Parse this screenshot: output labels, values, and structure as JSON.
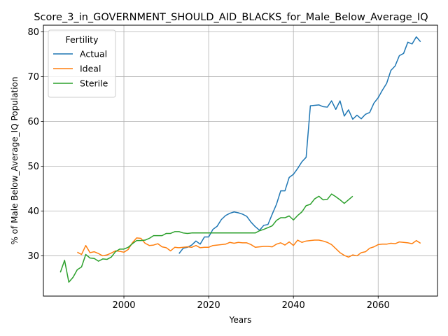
{
  "chart_data": {
    "type": "line",
    "title": "Score_3_in_GOVERNMENT_SHOULD_AID_BLACKS_for_Male_Below_Average_IQ",
    "xlabel": "Years",
    "ylabel": "% of Male Below_Average_IQ Population",
    "xlim": [
      1981,
      2074
    ],
    "ylim": [
      21,
      81.5
    ],
    "xticks": [
      2000,
      2020,
      2040,
      2060
    ],
    "yticks": [
      30,
      40,
      50,
      60,
      70,
      80
    ],
    "grid": true,
    "legend": {
      "title": "Fertility",
      "placement": "top-left"
    },
    "series": [
      {
        "name": "Actual",
        "color": "#1f77b4",
        "points": [
          [
            2013,
            30.5
          ],
          [
            2014,
            31.7
          ],
          [
            2015,
            31.9
          ],
          [
            2016,
            32.4
          ],
          [
            2017,
            33.3
          ],
          [
            2018,
            32.6
          ],
          [
            2019,
            34.2
          ],
          [
            2020,
            34.2
          ],
          [
            2021,
            35.9
          ],
          [
            2022,
            36.6
          ],
          [
            2023,
            38.1
          ],
          [
            2024,
            39.0
          ],
          [
            2025,
            39.5
          ],
          [
            2026,
            39.8
          ],
          [
            2027,
            39.6
          ],
          [
            2028,
            39.3
          ],
          [
            2029,
            38.8
          ],
          [
            2030,
            37.5
          ],
          [
            2031,
            36.5
          ],
          [
            2032,
            35.7
          ],
          [
            2033,
            36.8
          ],
          [
            2034,
            37.0
          ],
          [
            2035,
            39.3
          ],
          [
            2036,
            41.5
          ],
          [
            2037,
            44.5
          ],
          [
            2038,
            44.5
          ],
          [
            2039,
            47.5
          ],
          [
            2040,
            48.2
          ],
          [
            2041,
            49.5
          ],
          [
            2042,
            51.0
          ],
          [
            2043,
            52.0
          ],
          [
            2044,
            63.5
          ],
          [
            2045,
            63.6
          ],
          [
            2046,
            63.7
          ],
          [
            2047,
            63.3
          ],
          [
            2048,
            63.2
          ],
          [
            2049,
            64.6
          ],
          [
            2050,
            62.7
          ],
          [
            2051,
            64.6
          ],
          [
            2052,
            61.2
          ],
          [
            2053,
            62.6
          ],
          [
            2054,
            60.5
          ],
          [
            2055,
            61.4
          ],
          [
            2056,
            60.6
          ],
          [
            2057,
            61.6
          ],
          [
            2058,
            62.0
          ],
          [
            2059,
            64.1
          ],
          [
            2060,
            65.3
          ],
          [
            2061,
            67.0
          ],
          [
            2062,
            68.5
          ],
          [
            2063,
            71.4
          ],
          [
            2064,
            72.4
          ],
          [
            2065,
            74.7
          ],
          [
            2066,
            75.2
          ],
          [
            2067,
            77.7
          ],
          [
            2068,
            77.3
          ],
          [
            2069,
            78.9
          ],
          [
            2070,
            77.8
          ]
        ]
      },
      {
        "name": "Ideal",
        "color": "#ff7f0e",
        "points": [
          [
            1989,
            30.8
          ],
          [
            1990,
            30.3
          ],
          [
            1991,
            32.3
          ],
          [
            1992,
            30.7
          ],
          [
            1993,
            30.9
          ],
          [
            1994,
            30.5
          ],
          [
            1995,
            30.0
          ],
          [
            1996,
            30.2
          ],
          [
            1997,
            30.6
          ],
          [
            1998,
            31.1
          ],
          [
            1999,
            31.0
          ],
          [
            2000,
            30.8
          ],
          [
            2001,
            31.4
          ],
          [
            2002,
            32.9
          ],
          [
            2003,
            34.0
          ],
          [
            2004,
            33.9
          ],
          [
            2005,
            32.8
          ],
          [
            2006,
            32.3
          ],
          [
            2007,
            32.4
          ],
          [
            2008,
            32.7
          ],
          [
            2009,
            32.0
          ],
          [
            2010,
            31.8
          ],
          [
            2011,
            31.1
          ],
          [
            2012,
            31.9
          ],
          [
            2013,
            31.8
          ],
          [
            2014,
            31.9
          ],
          [
            2015,
            32.0
          ],
          [
            2016,
            31.9
          ],
          [
            2017,
            32.3
          ],
          [
            2018,
            31.8
          ],
          [
            2019,
            31.9
          ],
          [
            2020,
            31.9
          ],
          [
            2021,
            32.3
          ],
          [
            2022,
            32.4
          ],
          [
            2023,
            32.5
          ],
          [
            2024,
            32.6
          ],
          [
            2025,
            33.0
          ],
          [
            2026,
            32.8
          ],
          [
            2027,
            33.0
          ],
          [
            2028,
            32.9
          ],
          [
            2029,
            32.9
          ],
          [
            2030,
            32.5
          ],
          [
            2031,
            31.9
          ],
          [
            2032,
            32.0
          ],
          [
            2033,
            32.1
          ],
          [
            2034,
            32.1
          ],
          [
            2035,
            32.0
          ],
          [
            2036,
            32.6
          ],
          [
            2037,
            32.9
          ],
          [
            2038,
            32.4
          ],
          [
            2039,
            33.1
          ],
          [
            2040,
            32.3
          ],
          [
            2041,
            33.5
          ],
          [
            2042,
            33.0
          ],
          [
            2043,
            33.3
          ],
          [
            2044,
            33.4
          ],
          [
            2045,
            33.5
          ],
          [
            2046,
            33.5
          ],
          [
            2047,
            33.3
          ],
          [
            2048,
            33.0
          ],
          [
            2049,
            32.5
          ],
          [
            2050,
            31.6
          ],
          [
            2051,
            30.7
          ],
          [
            2052,
            30.1
          ],
          [
            2053,
            29.7
          ],
          [
            2054,
            30.2
          ],
          [
            2055,
            30.0
          ],
          [
            2056,
            30.7
          ],
          [
            2057,
            30.9
          ],
          [
            2058,
            31.7
          ],
          [
            2059,
            32.0
          ],
          [
            2060,
            32.5
          ],
          [
            2061,
            32.6
          ],
          [
            2062,
            32.6
          ],
          [
            2063,
            32.8
          ],
          [
            2064,
            32.7
          ],
          [
            2065,
            33.1
          ],
          [
            2066,
            33.0
          ],
          [
            2067,
            32.9
          ],
          [
            2068,
            32.7
          ],
          [
            2069,
            33.4
          ],
          [
            2070,
            32.8
          ]
        ]
      },
      {
        "name": "Sterile",
        "color": "#2ca02c",
        "points": [
          [
            1985,
            26.3
          ],
          [
            1986,
            29.0
          ],
          [
            1987,
            24.1
          ],
          [
            1988,
            25.2
          ],
          [
            1989,
            26.9
          ],
          [
            1990,
            27.5
          ],
          [
            1991,
            30.3
          ],
          [
            1992,
            29.5
          ],
          [
            1993,
            29.4
          ],
          [
            1994,
            28.8
          ],
          [
            1995,
            29.3
          ],
          [
            1996,
            29.2
          ],
          [
            1997,
            29.7
          ],
          [
            1998,
            30.9
          ],
          [
            1999,
            31.5
          ],
          [
            2000,
            31.5
          ],
          [
            2001,
            31.9
          ],
          [
            2002,
            32.7
          ],
          [
            2003,
            33.4
          ],
          [
            2004,
            33.4
          ],
          [
            2005,
            33.5
          ],
          [
            2006,
            33.9
          ],
          [
            2007,
            34.5
          ],
          [
            2008,
            34.5
          ],
          [
            2009,
            34.5
          ],
          [
            2010,
            35.0
          ],
          [
            2011,
            35.0
          ],
          [
            2012,
            35.4
          ],
          [
            2013,
            35.4
          ],
          [
            2014,
            35.1
          ],
          [
            2015,
            35.0
          ],
          [
            2016,
            35.1
          ],
          [
            2017,
            35.1
          ],
          [
            2018,
            35.1
          ],
          [
            2019,
            35.1
          ],
          [
            2020,
            35.1
          ],
          [
            2021,
            35.1
          ],
          [
            2022,
            35.1
          ],
          [
            2023,
            35.1
          ],
          [
            2024,
            35.1
          ],
          [
            2025,
            35.1
          ],
          [
            2026,
            35.1
          ],
          [
            2027,
            35.1
          ],
          [
            2028,
            35.1
          ],
          [
            2029,
            35.1
          ],
          [
            2030,
            35.1
          ],
          [
            2031,
            35.1
          ],
          [
            2032,
            35.6
          ],
          [
            2033,
            35.9
          ],
          [
            2034,
            36.3
          ],
          [
            2035,
            36.7
          ],
          [
            2036,
            37.9
          ],
          [
            2037,
            38.5
          ],
          [
            2038,
            38.5
          ],
          [
            2039,
            38.9
          ],
          [
            2040,
            38.0
          ],
          [
            2041,
            39.0
          ],
          [
            2042,
            39.8
          ],
          [
            2043,
            41.2
          ],
          [
            2044,
            41.5
          ],
          [
            2045,
            42.7
          ],
          [
            2046,
            43.3
          ],
          [
            2047,
            42.5
          ],
          [
            2048,
            42.6
          ],
          [
            2049,
            43.8
          ],
          [
            2050,
            43.2
          ],
          [
            2051,
            42.5
          ],
          [
            2052,
            41.7
          ],
          [
            2053,
            42.5
          ],
          [
            2054,
            43.3
          ]
        ]
      }
    ]
  }
}
